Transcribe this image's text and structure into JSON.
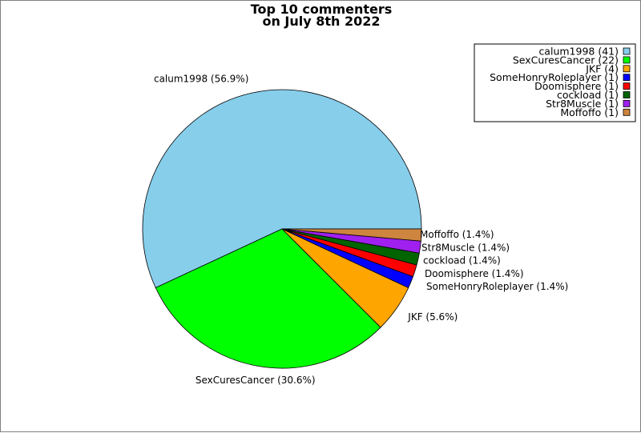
{
  "chart_data": {
    "type": "pie",
    "title": [
      "Top 10 commenters",
      "on July 8th 2022"
    ],
    "legend_position": "top-right",
    "slices": [
      {
        "name": "calum1998",
        "count": 41,
        "percent": 56.9,
        "label": "calum1998 (56.9%)",
        "legend": "calum1998 (41)",
        "color": "#87ceeb"
      },
      {
        "name": "SexCuresCancer",
        "count": 22,
        "percent": 30.6,
        "label": "SexCuresCancer (30.6%)",
        "legend": "SexCuresCancer (22)",
        "color": "#00ff00"
      },
      {
        "name": "JKF",
        "count": 4,
        "percent": 5.6,
        "label": "JKF (5.6%)",
        "legend": "JKF (4)",
        "color": "#ffa500"
      },
      {
        "name": "SomeHonryRoleplayer",
        "count": 1,
        "percent": 1.4,
        "label": "SomeHonryRoleplayer (1.4%)",
        "legend": "SomeHonryRoleplayer (1)",
        "color": "#0000ff"
      },
      {
        "name": "Doomisphere",
        "count": 1,
        "percent": 1.4,
        "label": "Doomisphere (1.4%)",
        "legend": "Doomisphere (1)",
        "color": "#ff0000"
      },
      {
        "name": "cockload",
        "count": 1,
        "percent": 1.4,
        "label": "cockload (1.4%)",
        "legend": "cockload (1)",
        "color": "#006400"
      },
      {
        "name": "Str8Muscle",
        "count": 1,
        "percent": 1.4,
        "label": "Str8Muscle (1.4%)",
        "legend": "Str8Muscle (1)",
        "color": "#a020f0"
      },
      {
        "name": "Moffoffo",
        "count": 1,
        "percent": 1.4,
        "label": "Moffoffo (1.4%)",
        "legend": "Moffoffo (1)",
        "color": "#cd853f"
      }
    ]
  }
}
